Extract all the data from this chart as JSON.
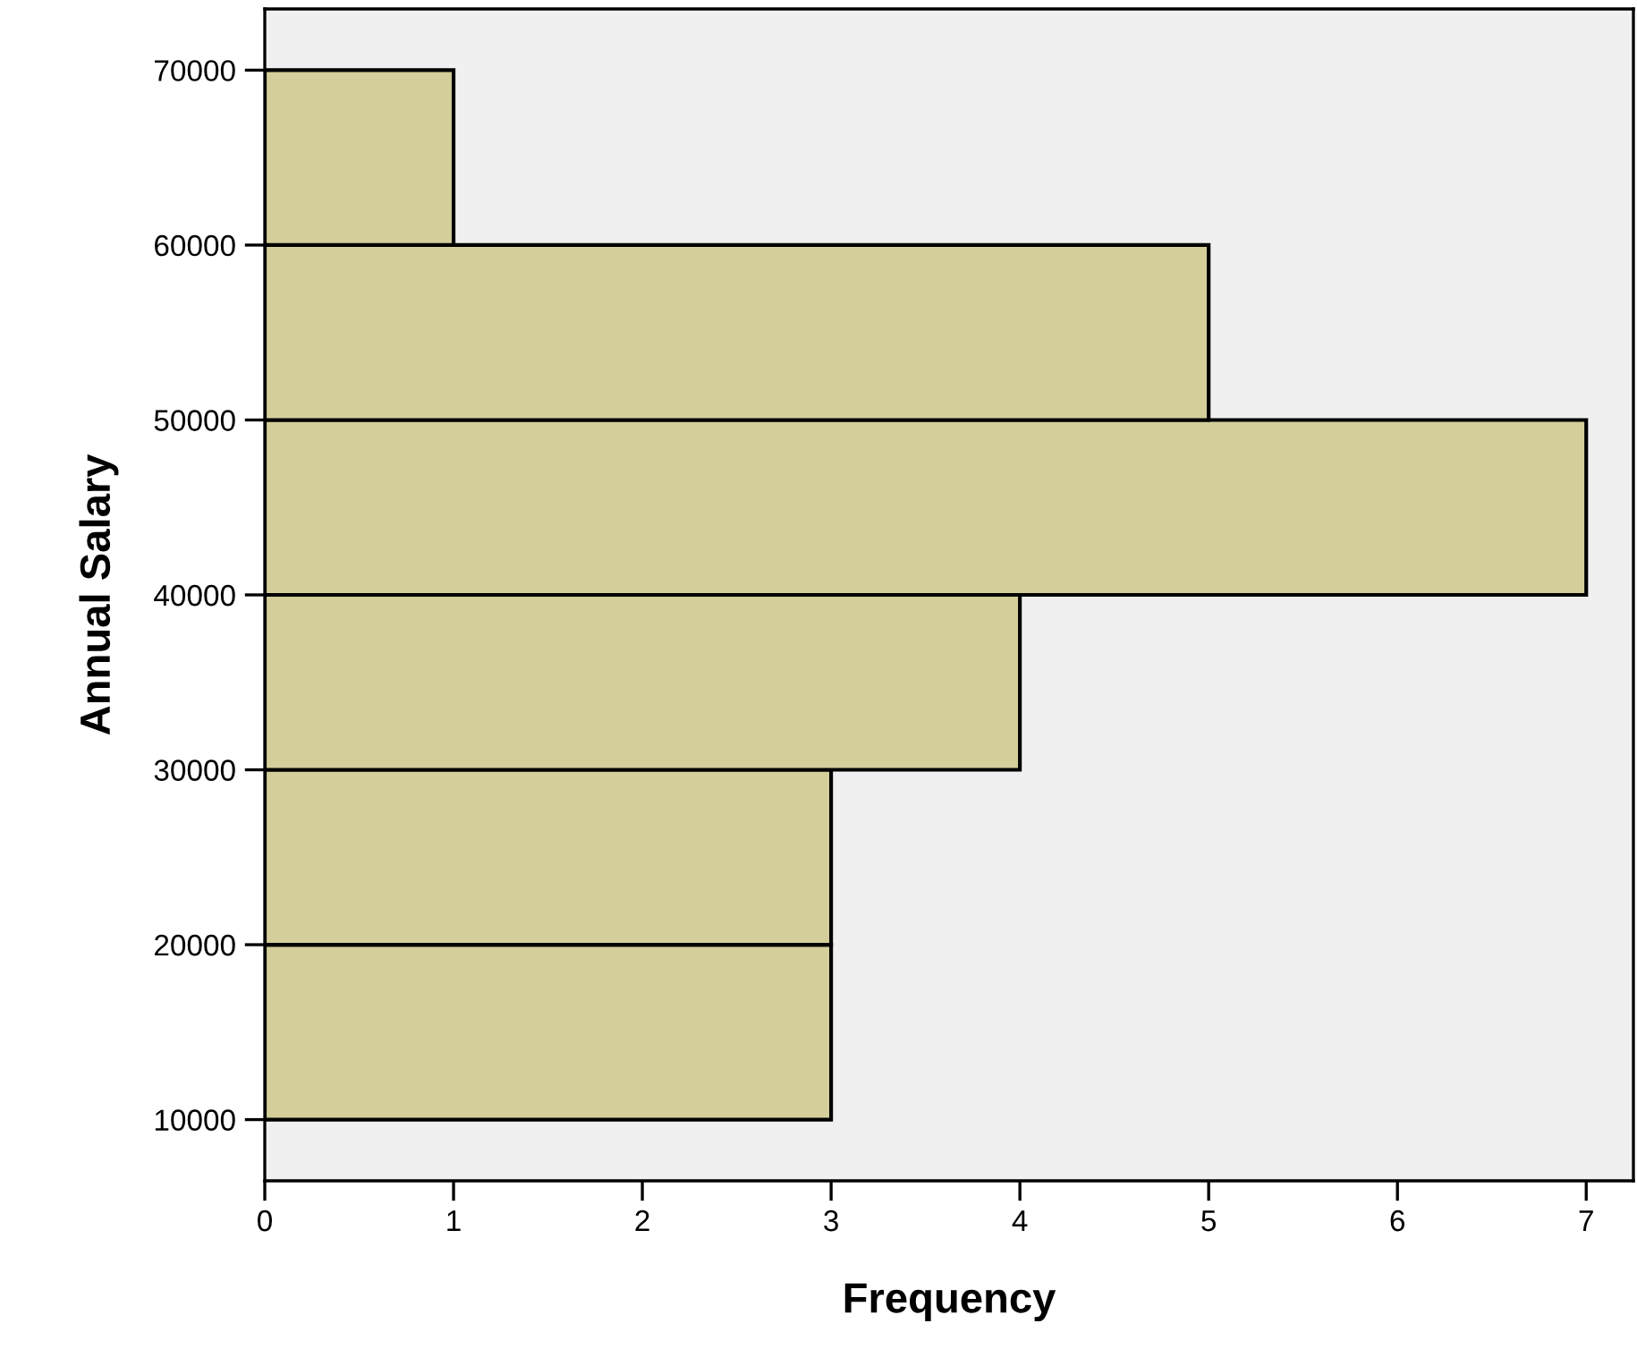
{
  "chart_data": {
    "type": "histogram",
    "orientation": "horizontal",
    "xlabel": "Frequency",
    "ylabel": "Annual Salary",
    "bins": [
      10000,
      20000,
      30000,
      40000,
      50000,
      60000,
      70000
    ],
    "values": [
      3,
      3,
      4,
      7,
      5,
      1
    ],
    "color": "#d3ce9a",
    "xlim": [
      0,
      7.25
    ],
    "xticks": [
      0,
      1,
      2,
      3,
      4,
      5,
      6,
      7
    ],
    "ylim": [
      6500,
      73500
    ],
    "yticks": [
      10000,
      20000,
      30000,
      40000,
      50000,
      60000,
      70000
    ],
    "grid": false,
    "legend": false
  }
}
